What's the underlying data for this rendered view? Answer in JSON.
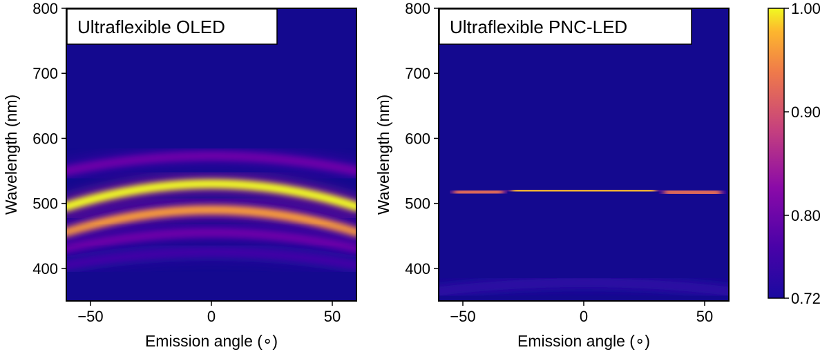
{
  "chart_data": [
    {
      "type": "heatmap",
      "title": "Ultraflexible OLED",
      "xlabel": "Emission angle (∘)",
      "ylabel": "Wavelength (nm)",
      "xlim": [
        -60,
        60
      ],
      "ylim": [
        350,
        800
      ],
      "xticks": [
        -50,
        0,
        50
      ],
      "yticks": [
        400,
        500,
        600,
        700,
        800
      ],
      "background_value": 0.72,
      "bands": [
        {
          "center_nm_at_0deg": 573,
          "center_nm_at_60deg": 550,
          "intensity": 0.8
        },
        {
          "center_nm_at_0deg": 530,
          "center_nm_at_60deg": 495,
          "intensity": 1.0
        },
        {
          "center_nm_at_0deg": 490,
          "center_nm_at_60deg": 455,
          "intensity": 0.96
        },
        {
          "center_nm_at_0deg": 455,
          "center_nm_at_60deg": 430,
          "intensity": 0.8
        },
        {
          "center_nm_at_0deg": 425,
          "center_nm_at_60deg": 405,
          "intensity": 0.76
        }
      ]
    },
    {
      "type": "heatmap",
      "title": "Ultraflexible PNC-LED",
      "xlabel": "Emission angle (∘)",
      "ylabel": "Wavelength (nm)",
      "xlim": [
        -60,
        60
      ],
      "ylim": [
        350,
        800
      ],
      "xticks": [
        -50,
        0,
        50
      ],
      "yticks": [
        400,
        500,
        600,
        700,
        800
      ],
      "background_value": 0.72,
      "bands": [
        {
          "center_nm_at_0deg": 520,
          "center_nm_at_60deg": 515,
          "intensity": 0.98,
          "angle_span": [
            -28,
            28
          ]
        },
        {
          "center_nm_at_0deg": 520,
          "center_nm_at_60deg": 515,
          "intensity": 0.93,
          "angle_span": [
            -52,
            -35
          ]
        },
        {
          "center_nm_at_0deg": 520,
          "center_nm_at_60deg": 515,
          "intensity": 0.93,
          "angle_span": [
            35,
            55
          ]
        },
        {
          "center_nm_at_0deg": 378,
          "center_nm_at_60deg": 365,
          "intensity": 0.74
        }
      ]
    }
  ],
  "colorbar": {
    "min": 0.72,
    "max": 1.0,
    "ticks": [
      "1.00",
      "0.90",
      "0.80",
      "0.72"
    ],
    "tick_values": [
      1.0,
      0.9,
      0.8,
      0.72
    ],
    "colormap": "plasma"
  }
}
